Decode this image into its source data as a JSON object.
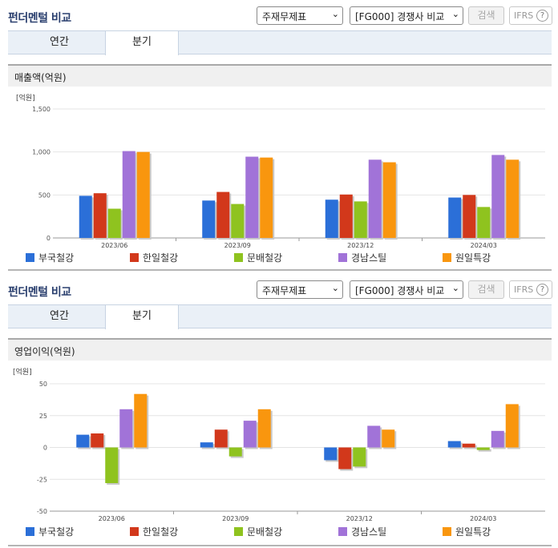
{
  "sections": [
    {
      "title": "펀더멘털 비교",
      "select_statement": "주재무제표",
      "select_compare": "[FG000] 경쟁사 비교",
      "search_label": "검색",
      "ifrs_label": "IFRS",
      "help_glyph": "?",
      "tab_annual": "연간",
      "tab_quarter": "분기",
      "metric_title": "매출액(억원)"
    },
    {
      "title": "펀더멘털 비교",
      "select_statement": "주재무제표",
      "select_compare": "[FG000] 경쟁사 비교",
      "search_label": "검색",
      "ifrs_label": "IFRS",
      "help_glyph": "?",
      "tab_annual": "연간",
      "tab_quarter": "분기",
      "metric_title": "영업이익(억원)"
    }
  ],
  "icons": {
    "chevron": "chevron-down-icon",
    "help": "question-circle-icon"
  },
  "chart_data": [
    {
      "type": "bar",
      "unit_label": "[억원]",
      "categories": [
        "2023/06",
        "2023/09",
        "2023/12",
        "2024/03"
      ],
      "ylim": [
        0,
        1500
      ],
      "yticks": [
        0,
        500,
        1000,
        1500
      ],
      "ytick_labels": [
        "0",
        "500",
        "1,000",
        "1,500"
      ],
      "grid": true,
      "legend_position": "bottom",
      "series": [
        {
          "name": "부국철강",
          "color": "#2b6fd8",
          "values": [
            490,
            435,
            445,
            470
          ]
        },
        {
          "name": "한일철강",
          "color": "#d2381b",
          "values": [
            520,
            535,
            505,
            500
          ]
        },
        {
          "name": "문배철강",
          "color": "#8fc31f",
          "values": [
            340,
            395,
            425,
            360
          ]
        },
        {
          "name": "경남스틸",
          "color": "#a173d8",
          "values": [
            1010,
            945,
            910,
            965
          ]
        },
        {
          "name": "원일특강",
          "color": "#f9960e",
          "values": [
            1000,
            935,
            880,
            910
          ]
        }
      ]
    },
    {
      "type": "bar",
      "unit_label": "[억원]",
      "categories": [
        "2023/06",
        "2023/09",
        "2023/12",
        "2024/03"
      ],
      "ylim": [
        -50,
        50
      ],
      "yticks": [
        -50,
        -25,
        0,
        25,
        50
      ],
      "ytick_labels": [
        "-50",
        "-25",
        "0",
        "25",
        "50"
      ],
      "grid": true,
      "legend_position": "bottom",
      "series": [
        {
          "name": "부국철강",
          "color": "#2b6fd8",
          "values": [
            10,
            4,
            -10,
            5
          ]
        },
        {
          "name": "한일철강",
          "color": "#d2381b",
          "values": [
            11,
            14,
            -17,
            3
          ]
        },
        {
          "name": "문배철강",
          "color": "#8fc31f",
          "values": [
            -28,
            -7,
            -15,
            -2
          ]
        },
        {
          "name": "경남스틸",
          "color": "#a173d8",
          "values": [
            30,
            21,
            17,
            13
          ]
        },
        {
          "name": "원일특강",
          "color": "#f9960e",
          "values": [
            42,
            30,
            14,
            34
          ]
        }
      ]
    }
  ]
}
